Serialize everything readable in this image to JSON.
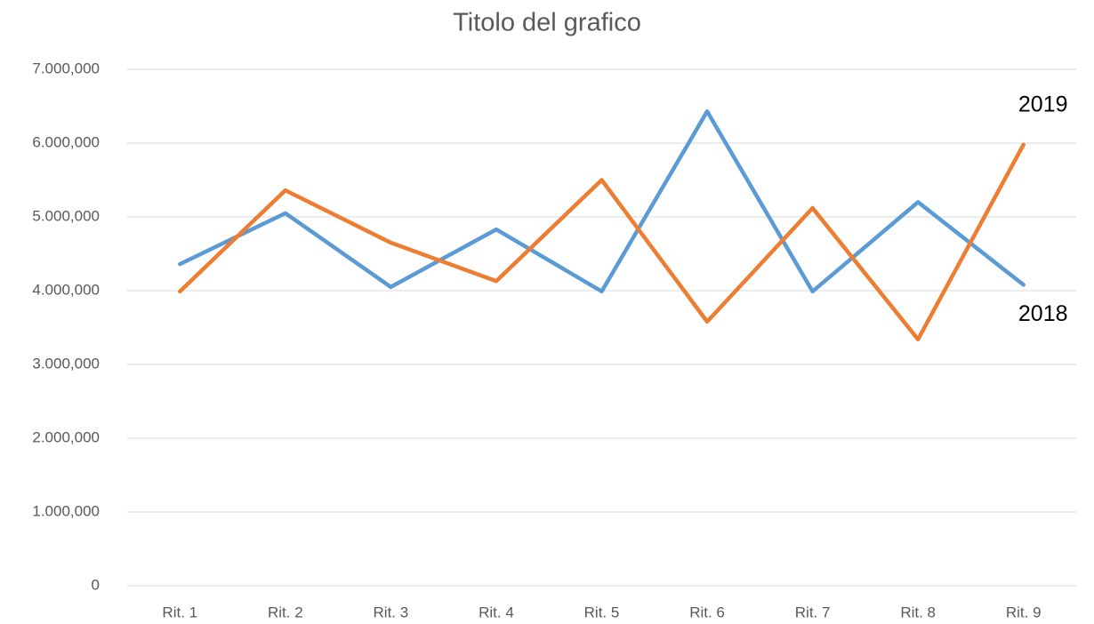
{
  "chart_data": {
    "type": "line",
    "title": "Titolo del grafico",
    "categories": [
      "Rit. 1",
      "Rit. 2",
      "Rit. 3",
      "Rit. 4",
      "Rit. 5",
      "Rit. 6",
      "Rit. 7",
      "Rit. 8",
      "Rit. 9"
    ],
    "series": [
      {
        "name": "2018",
        "color": "#5b9bd5",
        "values": [
          4360000,
          5050000,
          4050000,
          4830000,
          3990000,
          6430000,
          3990000,
          5200000,
          4080000
        ]
      },
      {
        "name": "2019",
        "color": "#ed7d31",
        "values": [
          3990000,
          5360000,
          4650000,
          4130000,
          5500000,
          3580000,
          5120000,
          3340000,
          5980000
        ]
      }
    ],
    "ylim": [
      0,
      7000000
    ],
    "yticks": [
      0,
      {
        "value": 1000000,
        "label": "1.000,000"
      },
      {
        "value": 2000000,
        "label": "2.000,000"
      },
      {
        "value": 3000000,
        "label": "3.000,000"
      },
      {
        "value": 4000000,
        "label": "4.000,000"
      },
      {
        "value": 5000000,
        "label": "5.000,000"
      },
      {
        "value": 6000000,
        "label": "6.000,000"
      },
      {
        "value": 7000000,
        "label": "7.000,000"
      }
    ],
    "grid": true
  }
}
